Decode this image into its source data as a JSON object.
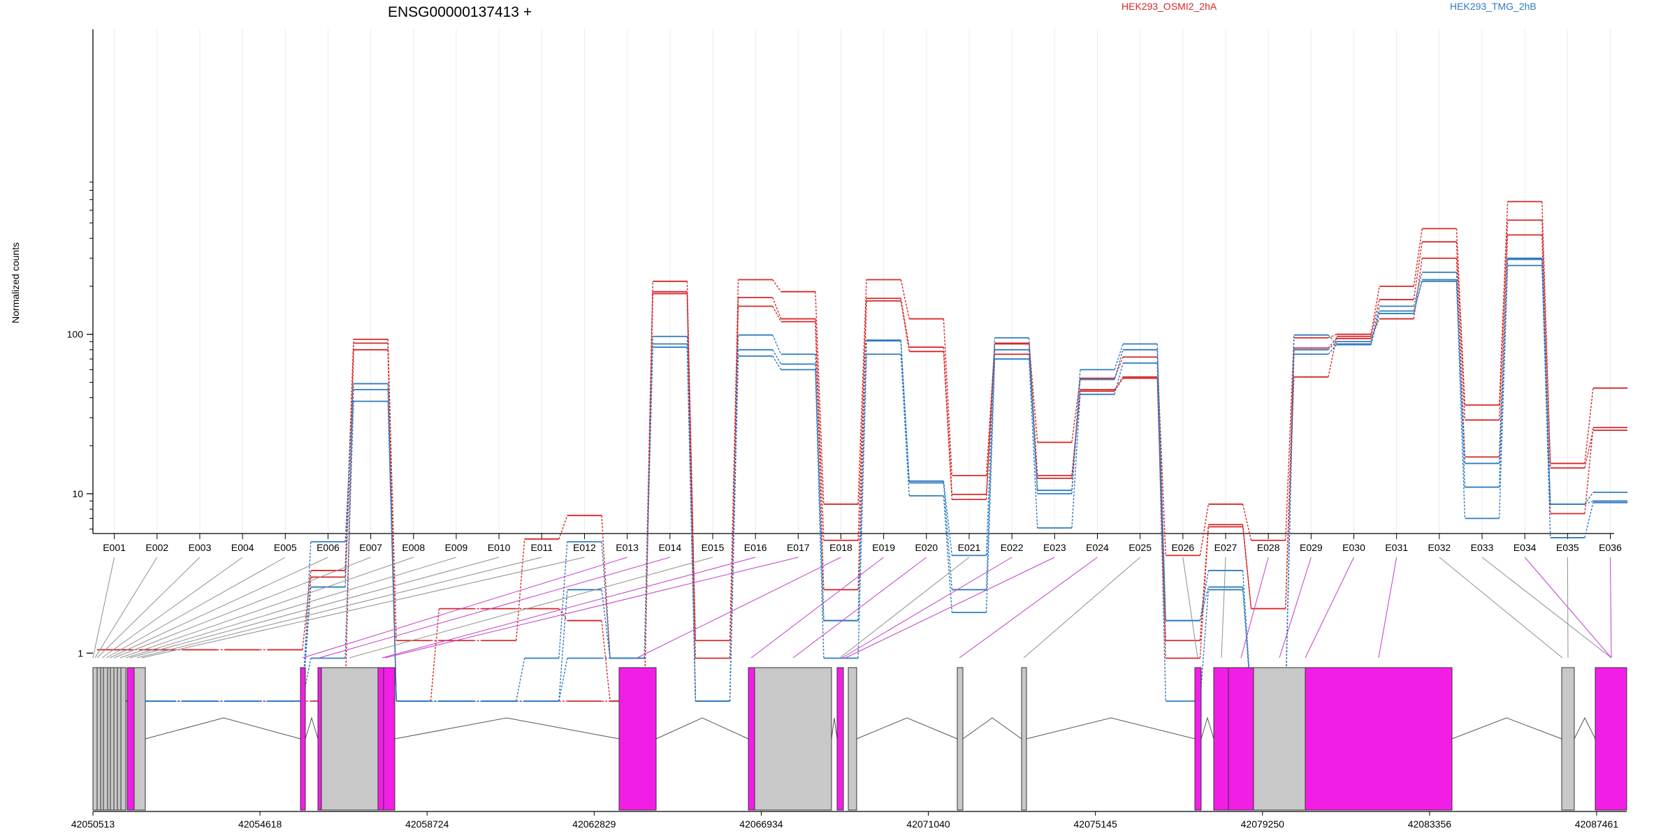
{
  "chart_data": {
    "type": "line",
    "title": "ENSG00000137413 +",
    "ylabel": "Normalized counts",
    "yscale": "log",
    "ylim": [
      0.5,
      900
    ],
    "yticks": [
      {
        "value": 1,
        "label": "1"
      },
      {
        "value": 10,
        "label": "10"
      },
      {
        "value": 100,
        "label": "100"
      }
    ],
    "legend_position": "top",
    "exons": [
      "E001",
      "E002",
      "E003",
      "E004",
      "E005",
      "E006",
      "E007",
      "E008",
      "E009",
      "E010",
      "E011",
      "E012",
      "E013",
      "E014",
      "E015",
      "E016",
      "E017",
      "E018",
      "E019",
      "E020",
      "E021",
      "E022",
      "E023",
      "E024",
      "E025",
      "E026",
      "E027",
      "E028",
      "E029",
      "E030",
      "E031",
      "E032",
      "E033",
      "E034",
      "E035",
      "E036"
    ],
    "series": [
      {
        "name": "HEK293_OSMI2_2hA",
        "color": "#d62728",
        "lines": [
          [
            1.05,
            1.05,
            1.05,
            1.05,
            1.05,
            3.3,
            93,
            1.2,
            1.2,
            1.2,
            5.2,
            7.3,
            0.93,
            215,
            1.2,
            220,
            185,
            8.6,
            220,
            125,
            13,
            88,
            21,
            53,
            72,
            4.1,
            8.6,
            5.1,
            95,
            100,
            200,
            460,
            36,
            680,
            15.5,
            46
          ],
          [
            0.5,
            0.5,
            0.5,
            0.5,
            0.5,
            3.0,
            88,
            0.5,
            1.9,
            1.9,
            1.9,
            1.6,
            0.5,
            185,
            0.5,
            170,
            125,
            5.1,
            168,
            83,
            9.9,
            87,
            13,
            45,
            54,
            1.2,
            6.4,
            1.9,
            54,
            97,
            165,
            380,
            29,
            520,
            14.5,
            25
          ],
          [
            0.5,
            0.5,
            0.5,
            0.5,
            0.5,
            0.5,
            80,
            0.5,
            0.5,
            0.5,
            0.5,
            0.5,
            0.5,
            180,
            0.93,
            150,
            120,
            2.5,
            162,
            78,
            9.2,
            75,
            12.5,
            44,
            53,
            0.93,
            6.2,
            1.9,
            82,
            94,
            125,
            300,
            17,
            420,
            7.5,
            26
          ]
        ]
      },
      {
        "name": "HEK293_TMG_2hB",
        "color": "#2f7bbf",
        "lines": [
          [
            0.5,
            0.5,
            0.5,
            0.5,
            0.5,
            5.0,
            49,
            0.5,
            0.5,
            0.5,
            0.93,
            5.0,
            0.93,
            97,
            0.5,
            99,
            75,
            1.6,
            92,
            12,
            4.1,
            95,
            10.5,
            60,
            87,
            1.6,
            3.3,
            0.5,
            99,
            87,
            150,
            245,
            11,
            300,
            8.6,
            10.2
          ],
          [
            0.5,
            0.5,
            0.5,
            0.5,
            0.5,
            2.6,
            45,
            0.5,
            0.5,
            0.5,
            0.5,
            2.5,
            0.93,
            87,
            0.5,
            80,
            65,
            1.6,
            91,
            11.7,
            2.5,
            80,
            10,
            52,
            80,
            1.6,
            2.6,
            0.5,
            80,
            90,
            135,
            220,
            15.5,
            295,
            8.6,
            9.0
          ],
          [
            0.5,
            0.5,
            0.5,
            0.5,
            0.5,
            0.93,
            38,
            0.5,
            0.5,
            0.5,
            0.5,
            0.93,
            0.93,
            83,
            0.5,
            73,
            60,
            0.93,
            75,
            9.7,
            1.8,
            70,
            6.1,
            42,
            66,
            0.5,
            2.5,
            0.5,
            75,
            86,
            140,
            215,
            7.0,
            270,
            5.3,
            8.8
          ]
        ]
      }
    ],
    "gene_model": {
      "genomic_ticks": [
        "42050513",
        "42054618",
        "42058724",
        "42062829",
        "42066934",
        "42071040",
        "42075145",
        "42079250",
        "42083356",
        "42087461"
      ],
      "connectors": [
        {
          "exon": 1,
          "color": "#8f8f8f"
        },
        {
          "exon": 2,
          "color": "#8f8f8f"
        },
        {
          "exon": 3,
          "color": "#8f8f8f"
        },
        {
          "exon": 4,
          "color": "#8f8f8f"
        },
        {
          "exon": 5,
          "color": "#8f8f8f"
        },
        {
          "exon": 6,
          "color": "#8f8f8f"
        },
        {
          "exon": 7,
          "color": "#8f8f8f"
        },
        {
          "exon": 8,
          "color": "#8f8f8f"
        },
        {
          "exon": 9,
          "color": "#8f8f8f"
        },
        {
          "exon": 10,
          "color": "#8f8f8f"
        },
        {
          "exon": 11,
          "color": "#8f8f8f"
        },
        {
          "exon": 12,
          "color": "#8f8f8f"
        },
        {
          "exon": 13,
          "color": "#c23cc7"
        },
        {
          "exon": 14,
          "color": "#c23cc7"
        },
        {
          "exon": 15,
          "color": "#8f8f8f"
        },
        {
          "exon": 16,
          "color": "#c23cc7"
        },
        {
          "exon": 17,
          "color": "#c23cc7"
        },
        {
          "exon": 18,
          "color": "#c23cc7"
        },
        {
          "exon": 19,
          "color": "#c23cc7"
        },
        {
          "exon": 20,
          "color": "#c23cc7"
        },
        {
          "exon": 21,
          "color": "#8f8f8f"
        },
        {
          "exon": 22,
          "color": "#c23cc7"
        },
        {
          "exon": 23,
          "color": "#c23cc7"
        },
        {
          "exon": 24,
          "color": "#c23cc7"
        },
        {
          "exon": 25,
          "color": "#8f8f8f"
        },
        {
          "exon": 26,
          "color": "#8f8f8f"
        },
        {
          "exon": 27,
          "color": "#8f8f8f"
        },
        {
          "exon": 28,
          "color": "#c23cc7"
        },
        {
          "exon": 29,
          "color": "#c23cc7"
        },
        {
          "exon": 30,
          "color": "#c23cc7"
        },
        {
          "exon": 31,
          "color": "#c23cc7"
        },
        {
          "exon": 32,
          "color": "#8f8f8f"
        },
        {
          "exon": 33,
          "color": "#8f8f8f"
        },
        {
          "exon": 34,
          "color": "#c23cc7"
        },
        {
          "exon": 35,
          "color": "#8f8f8f"
        },
        {
          "exon": 36,
          "color": "#c23cc7"
        }
      ]
    },
    "colors": {
      "highlight_exon": "#f21ee6",
      "normal_exon": "#c8c8c8",
      "connector_highlight": "#c23cc7",
      "connector_normal": "#8f8f8f"
    }
  }
}
